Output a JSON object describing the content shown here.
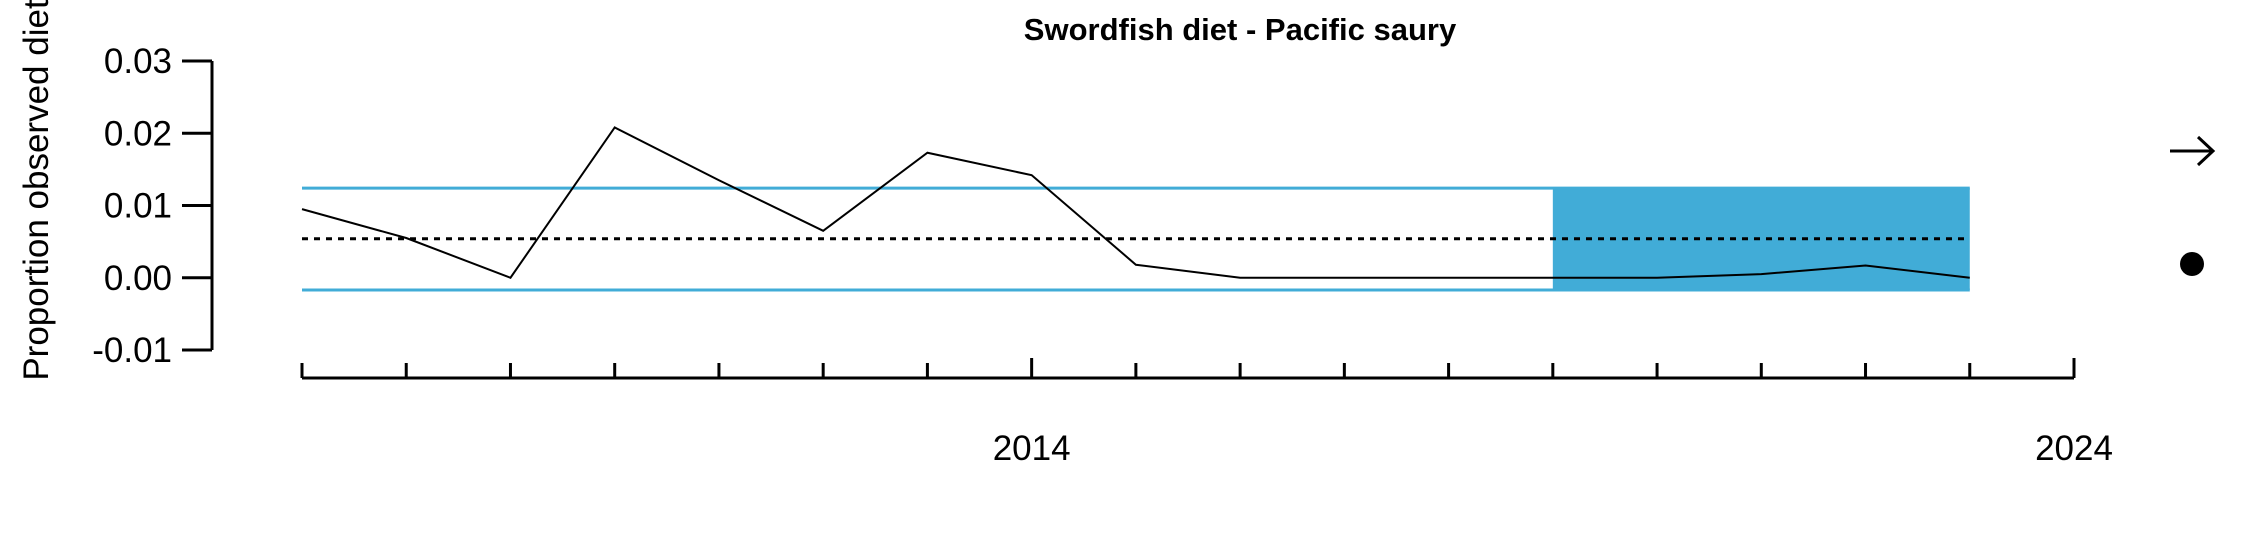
{
  "chart_data": {
    "type": "line",
    "title": "Swordfish diet - Pacific saury",
    "ylabel": "Proportion observed diet",
    "xlabel": "",
    "xlim": [
      2007,
      2024
    ],
    "ylim": [
      -0.01,
      0.03
    ],
    "yticks": [
      -0.01,
      0.0,
      0.01,
      0.02,
      0.03
    ],
    "ytick_labels": [
      "-0.01",
      "0.00",
      "0.01",
      "0.02",
      "0.03"
    ],
    "xticks_major": [
      2014,
      2024
    ],
    "xtick_labels": [
      "2014",
      "2024"
    ],
    "xticks_minor": [
      2007,
      2008,
      2009,
      2010,
      2011,
      2012,
      2013,
      2014,
      2015,
      2016,
      2017,
      2018,
      2019,
      2020,
      2021,
      2022,
      2023,
      2024
    ],
    "series": [
      {
        "x": [
          2007,
          2008,
          2009,
          2010,
          2011,
          2012,
          2013,
          2014,
          2015,
          2016,
          2017,
          2018,
          2019,
          2020,
          2021,
          2022,
          2023
        ],
        "values": [
          0.0095,
          0.0055,
          0.0,
          0.0208,
          0.0135,
          0.0065,
          0.0173,
          0.0142,
          0.0018,
          0.0,
          0.0,
          0.0,
          0.0,
          0.0,
          0.0005,
          0.0017,
          0.0
        ],
        "color": "#000000"
      }
    ],
    "mean": 0.0054,
    "upper_sd": 0.0124,
    "lower_sd": -0.0017,
    "recent_window": [
      2019,
      2023
    ],
    "colors": {
      "band": "#41acd7",
      "line": "#000000",
      "mean": "#000000"
    },
    "indicators": {
      "trend_icon": "right-arrow-icon",
      "mean_icon": "filled-circle-icon"
    }
  }
}
